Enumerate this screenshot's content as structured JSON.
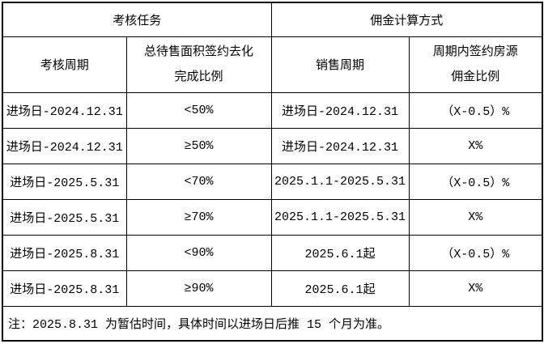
{
  "table": {
    "header_groups": [
      {
        "label": "考核任务"
      },
      {
        "label": "佣金计算方式"
      }
    ],
    "column_headers": [
      {
        "lines": [
          "考核周期"
        ]
      },
      {
        "lines": [
          "总待售面积签约去化",
          "完成比例"
        ]
      },
      {
        "lines": [
          "销售周期"
        ]
      },
      {
        "lines": [
          "周期内签约房源",
          "佣金比例"
        ]
      }
    ],
    "rows": [
      [
        "进场日-2024.12.31",
        "<50%",
        "进场日-2024.12.31",
        "（X-0.5）%"
      ],
      [
        "进场日-2024.12.31",
        "≥50%",
        "进场日-2024.12.31",
        "X%"
      ],
      [
        "进场日-2025.5.31",
        "<70%",
        "2025.1.1-2025.5.31",
        "（X-0.5）%"
      ],
      [
        "进场日-2025.5.31",
        "≥70%",
        "2025.1.1-2025.5.31",
        "X%"
      ],
      [
        "进场日-2025.8.31",
        "<90%",
        "2025.6.1起",
        "（X-0.5）%"
      ],
      [
        "进场日-2025.8.31",
        "≥90%",
        "2025.6.1起",
        "X%"
      ]
    ],
    "note": "注：2025.8.31 为暂估时间，具体时间以进场日后推 15 个月为准。"
  },
  "colors": {
    "border": "#000000",
    "background": "#ffffff",
    "text": "#000000"
  }
}
